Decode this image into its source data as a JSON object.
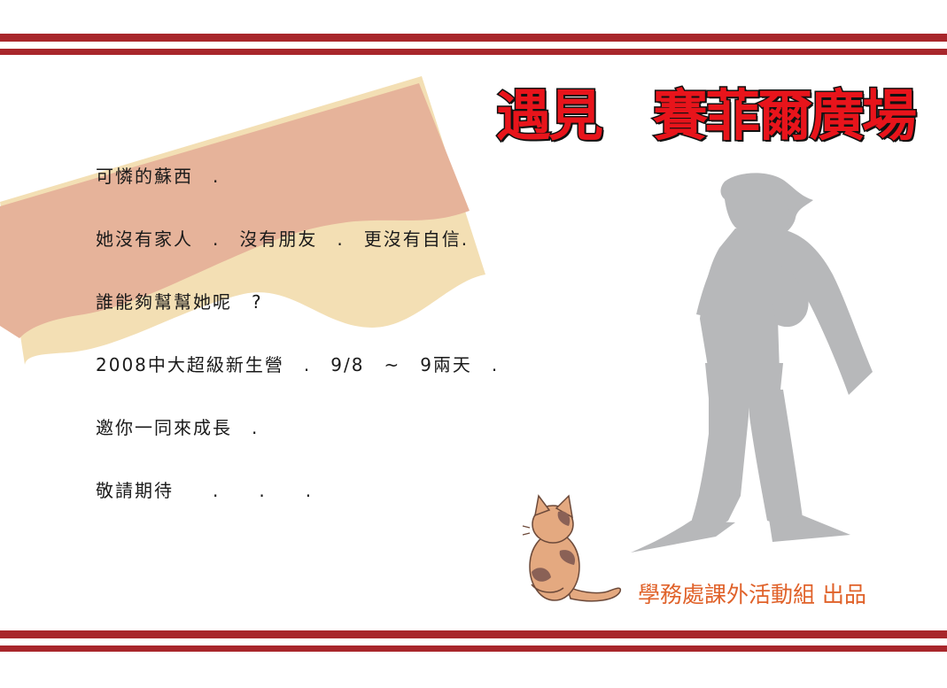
{
  "poster": {
    "title": "遇見　賽菲爾廣場",
    "lines": [
      "可憐的蘇西　.",
      "她沒有家人　.　沒有朋友　.　更沒有自信.",
      "誰能夠幫幫她呢　?",
      "2008中大超級新生營　.　9/8　~　9兩天　.",
      "邀你一同來成長　.",
      "敬請期待　　.　　.　　."
    ],
    "credit": "學務處課外活動組 出品"
  },
  "colors": {
    "stripe": "#a8262b",
    "title": "#e8141b",
    "banner": "#e6b39a",
    "banner_wave": "#f3dfb4",
    "silhouette": "#b7b8ba",
    "credit": "#e0622a"
  }
}
